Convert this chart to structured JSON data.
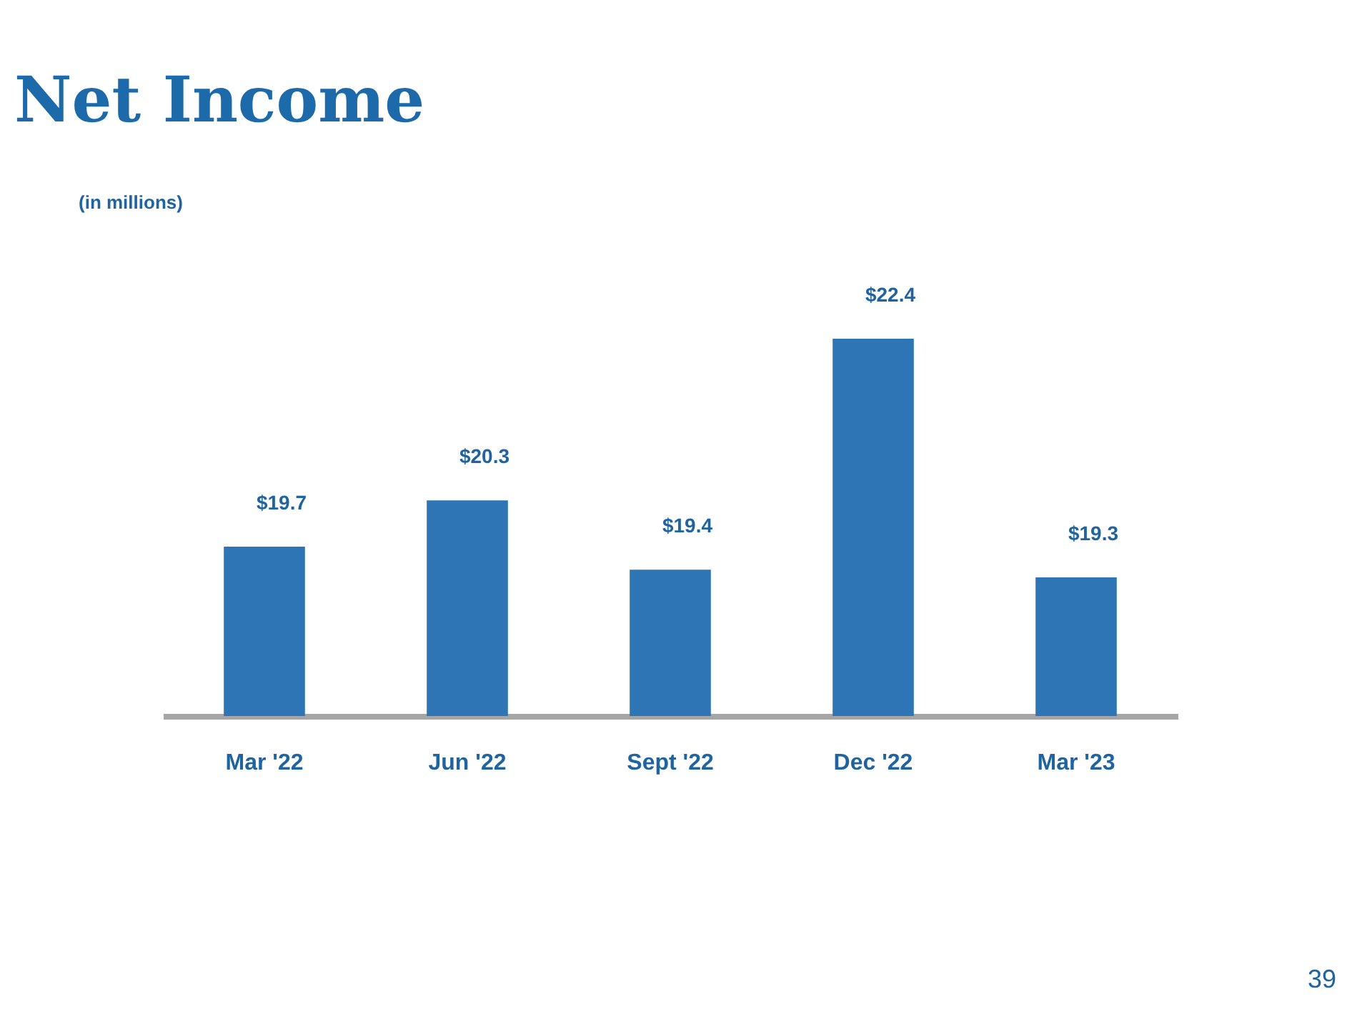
{
  "chart_data": {
    "type": "bar",
    "title": "Net Income",
    "subtitle": "(in millions)",
    "categories": [
      "Mar '22",
      "Jun '22",
      "Sept '22",
      "Dec '22",
      "Mar '23"
    ],
    "values": [
      19.7,
      20.3,
      19.4,
      22.4,
      19.3
    ],
    "value_labels": [
      "$19.7",
      "$20.3",
      "$19.4",
      "$22.4",
      "$19.3"
    ],
    "color": "#2e75b6",
    "ylim": [
      17.5,
      22.4
    ],
    "tick_labels": "x",
    "annotations": [
      "39"
    ]
  }
}
